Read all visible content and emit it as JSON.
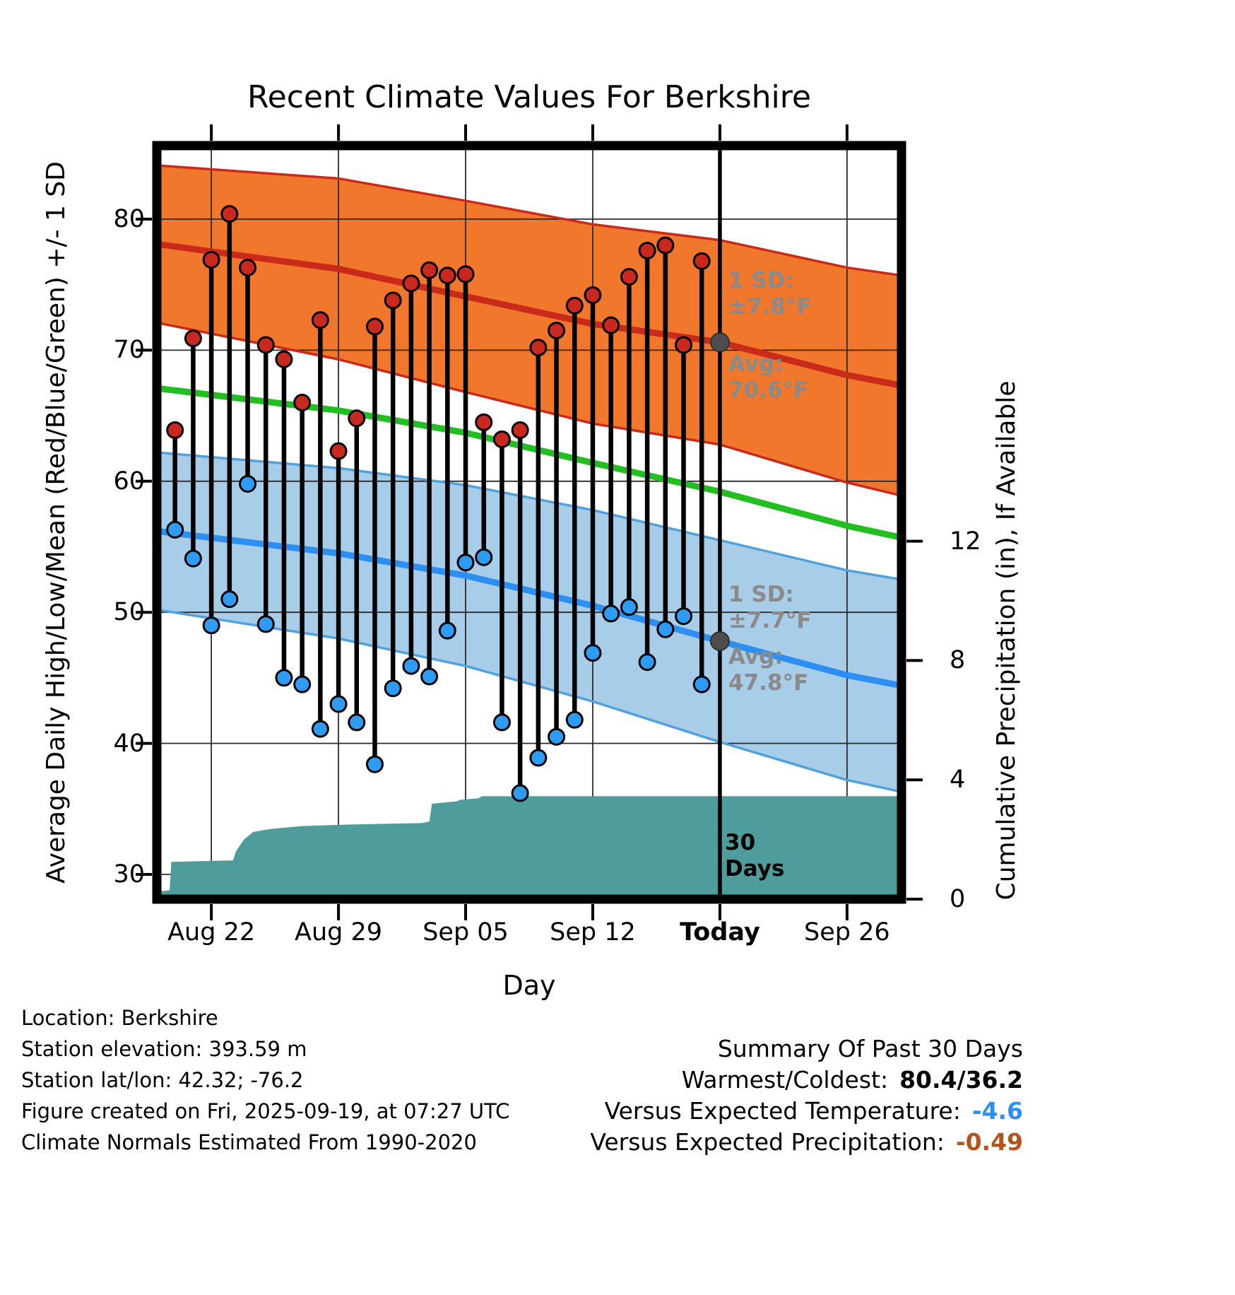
{
  "chart_data": {
    "type": "line",
    "title": "Recent Climate Values For Berkshire",
    "xlabel": "Day",
    "ylabel_left": "Average Daily High/Low/Mean (Red/Blue/Green) +/- 1 SD",
    "ylabel_right": "Cumulative Precipitation (in), If Available",
    "grid": true,
    "x_domain_days": [
      0,
      41
    ],
    "temp_ylim": [
      28.1,
      85.6
    ],
    "temp_ticks": [
      30,
      40,
      50,
      60,
      70,
      80
    ],
    "precip_ticks": [
      0,
      4,
      8,
      12
    ],
    "x_ticks": [
      {
        "label": "Aug 22",
        "day": 3,
        "bold": false
      },
      {
        "label": "Aug 29",
        "day": 10,
        "bold": false
      },
      {
        "label": "Sep 05",
        "day": 17,
        "bold": false
      },
      {
        "label": "Sep 12",
        "day": 24,
        "bold": false
      },
      {
        "label": "Today",
        "day": 31,
        "bold": true
      },
      {
        "label": "Sep 26",
        "day": 38,
        "bold": false
      }
    ],
    "daily": {
      "first_day": 1,
      "high": [
        63.9,
        70.9,
        76.9,
        80.4,
        76.3,
        70.4,
        69.3,
        66.0,
        72.3,
        62.3,
        64.8,
        71.8,
        73.8,
        75.1,
        76.1,
        75.7,
        75.8,
        64.5,
        63.2,
        63.9,
        70.2,
        71.5,
        73.4,
        74.2,
        71.9,
        75.6,
        77.6,
        78.0,
        70.4,
        76.8
      ],
      "low": [
        56.3,
        54.1,
        49.0,
        51.0,
        59.8,
        49.1,
        45.0,
        44.5,
        41.1,
        43.0,
        41.6,
        38.4,
        44.2,
        45.9,
        45.1,
        48.6,
        53.8,
        54.2,
        41.6,
        36.2,
        38.9,
        40.5,
        41.8,
        46.9,
        49.9,
        50.4,
        46.2,
        48.7,
        49.7,
        44.5
      ]
    },
    "normals": {
      "days": [
        0,
        10,
        17,
        24,
        31,
        38,
        41
      ],
      "high_avg": [
        78.1,
        76.2,
        74.1,
        72.0,
        70.6,
        68.1,
        67.3
      ],
      "high_sd": [
        6.0,
        6.9,
        7.3,
        7.6,
        7.8,
        8.2,
        8.4
      ],
      "mean": [
        67.1,
        65.4,
        63.7,
        61.4,
        59.2,
        56.6,
        55.7
      ],
      "low_avg": [
        56.2,
        54.5,
        52.8,
        50.5,
        47.8,
        45.2,
        44.4
      ],
      "low_sd": [
        6.0,
        6.5,
        6.9,
        7.3,
        7.7,
        8.0,
        8.1
      ]
    },
    "precip_cumulative": {
      "days": [
        0,
        0.7,
        0.8,
        4.2,
        4.35,
        4.8,
        5.3,
        6.2,
        8.0,
        10.5,
        14.6,
        15.0,
        15.15,
        16.5,
        16.7,
        17.7,
        17.9,
        41
      ],
      "values_in": [
        0.25,
        0.3,
        1.25,
        1.3,
        1.6,
        2.0,
        2.25,
        2.35,
        2.45,
        2.5,
        2.55,
        2.6,
        3.2,
        3.28,
        3.33,
        3.38,
        3.45,
        3.45
      ]
    },
    "today": {
      "day": 31,
      "high_avg": 70.6,
      "high_sd": 7.8,
      "low_avg": 47.8,
      "low_sd": 7.7
    },
    "colors": {
      "high_band_fill": "#F0772B",
      "high_edge": "#C92A19",
      "high_line": "#C92A19",
      "high_dot": "#C9281E",
      "mean_line": "#23BE21",
      "low_band_fill": "#A7CDE9",
      "low_edge": "#51A2DC",
      "low_line": "#2E8FF2",
      "low_dot": "#2E9BF5",
      "precip_fill": "#4E9C9B",
      "bar": "#000000",
      "avg_dot": "#4D4D4D",
      "grid": "#2B2B2B"
    }
  },
  "annotations": {
    "high_sd": "1 SD:\n±7.8°F",
    "high_avg": "Avg:\n70.6°F",
    "low_sd": "1 SD:\n±7.7°F",
    "low_avg": "Avg:\n47.8°F",
    "period": "30\nDays"
  },
  "footer": {
    "lines": [
      "Location: Berkshire",
      "Station elevation: 393.59 m",
      "Station lat/lon: 42.32; -76.2",
      "Figure created on Fri, 2025-09-19, at 07:27 UTC",
      "Climate Normals Estimated From 1990-2020"
    ]
  },
  "summary": {
    "title": "Summary Of Past 30 Days",
    "rows": [
      {
        "label": "Warmest/Coldest:",
        "value": "80.4/36.2",
        "color": "#000000"
      },
      {
        "label": "Versus Expected Temperature:",
        "value": "-4.6",
        "color": "#2E8FF2"
      },
      {
        "label": "Versus Expected Precipitation:",
        "value": "-0.49",
        "color": "#B3541D"
      }
    ]
  }
}
